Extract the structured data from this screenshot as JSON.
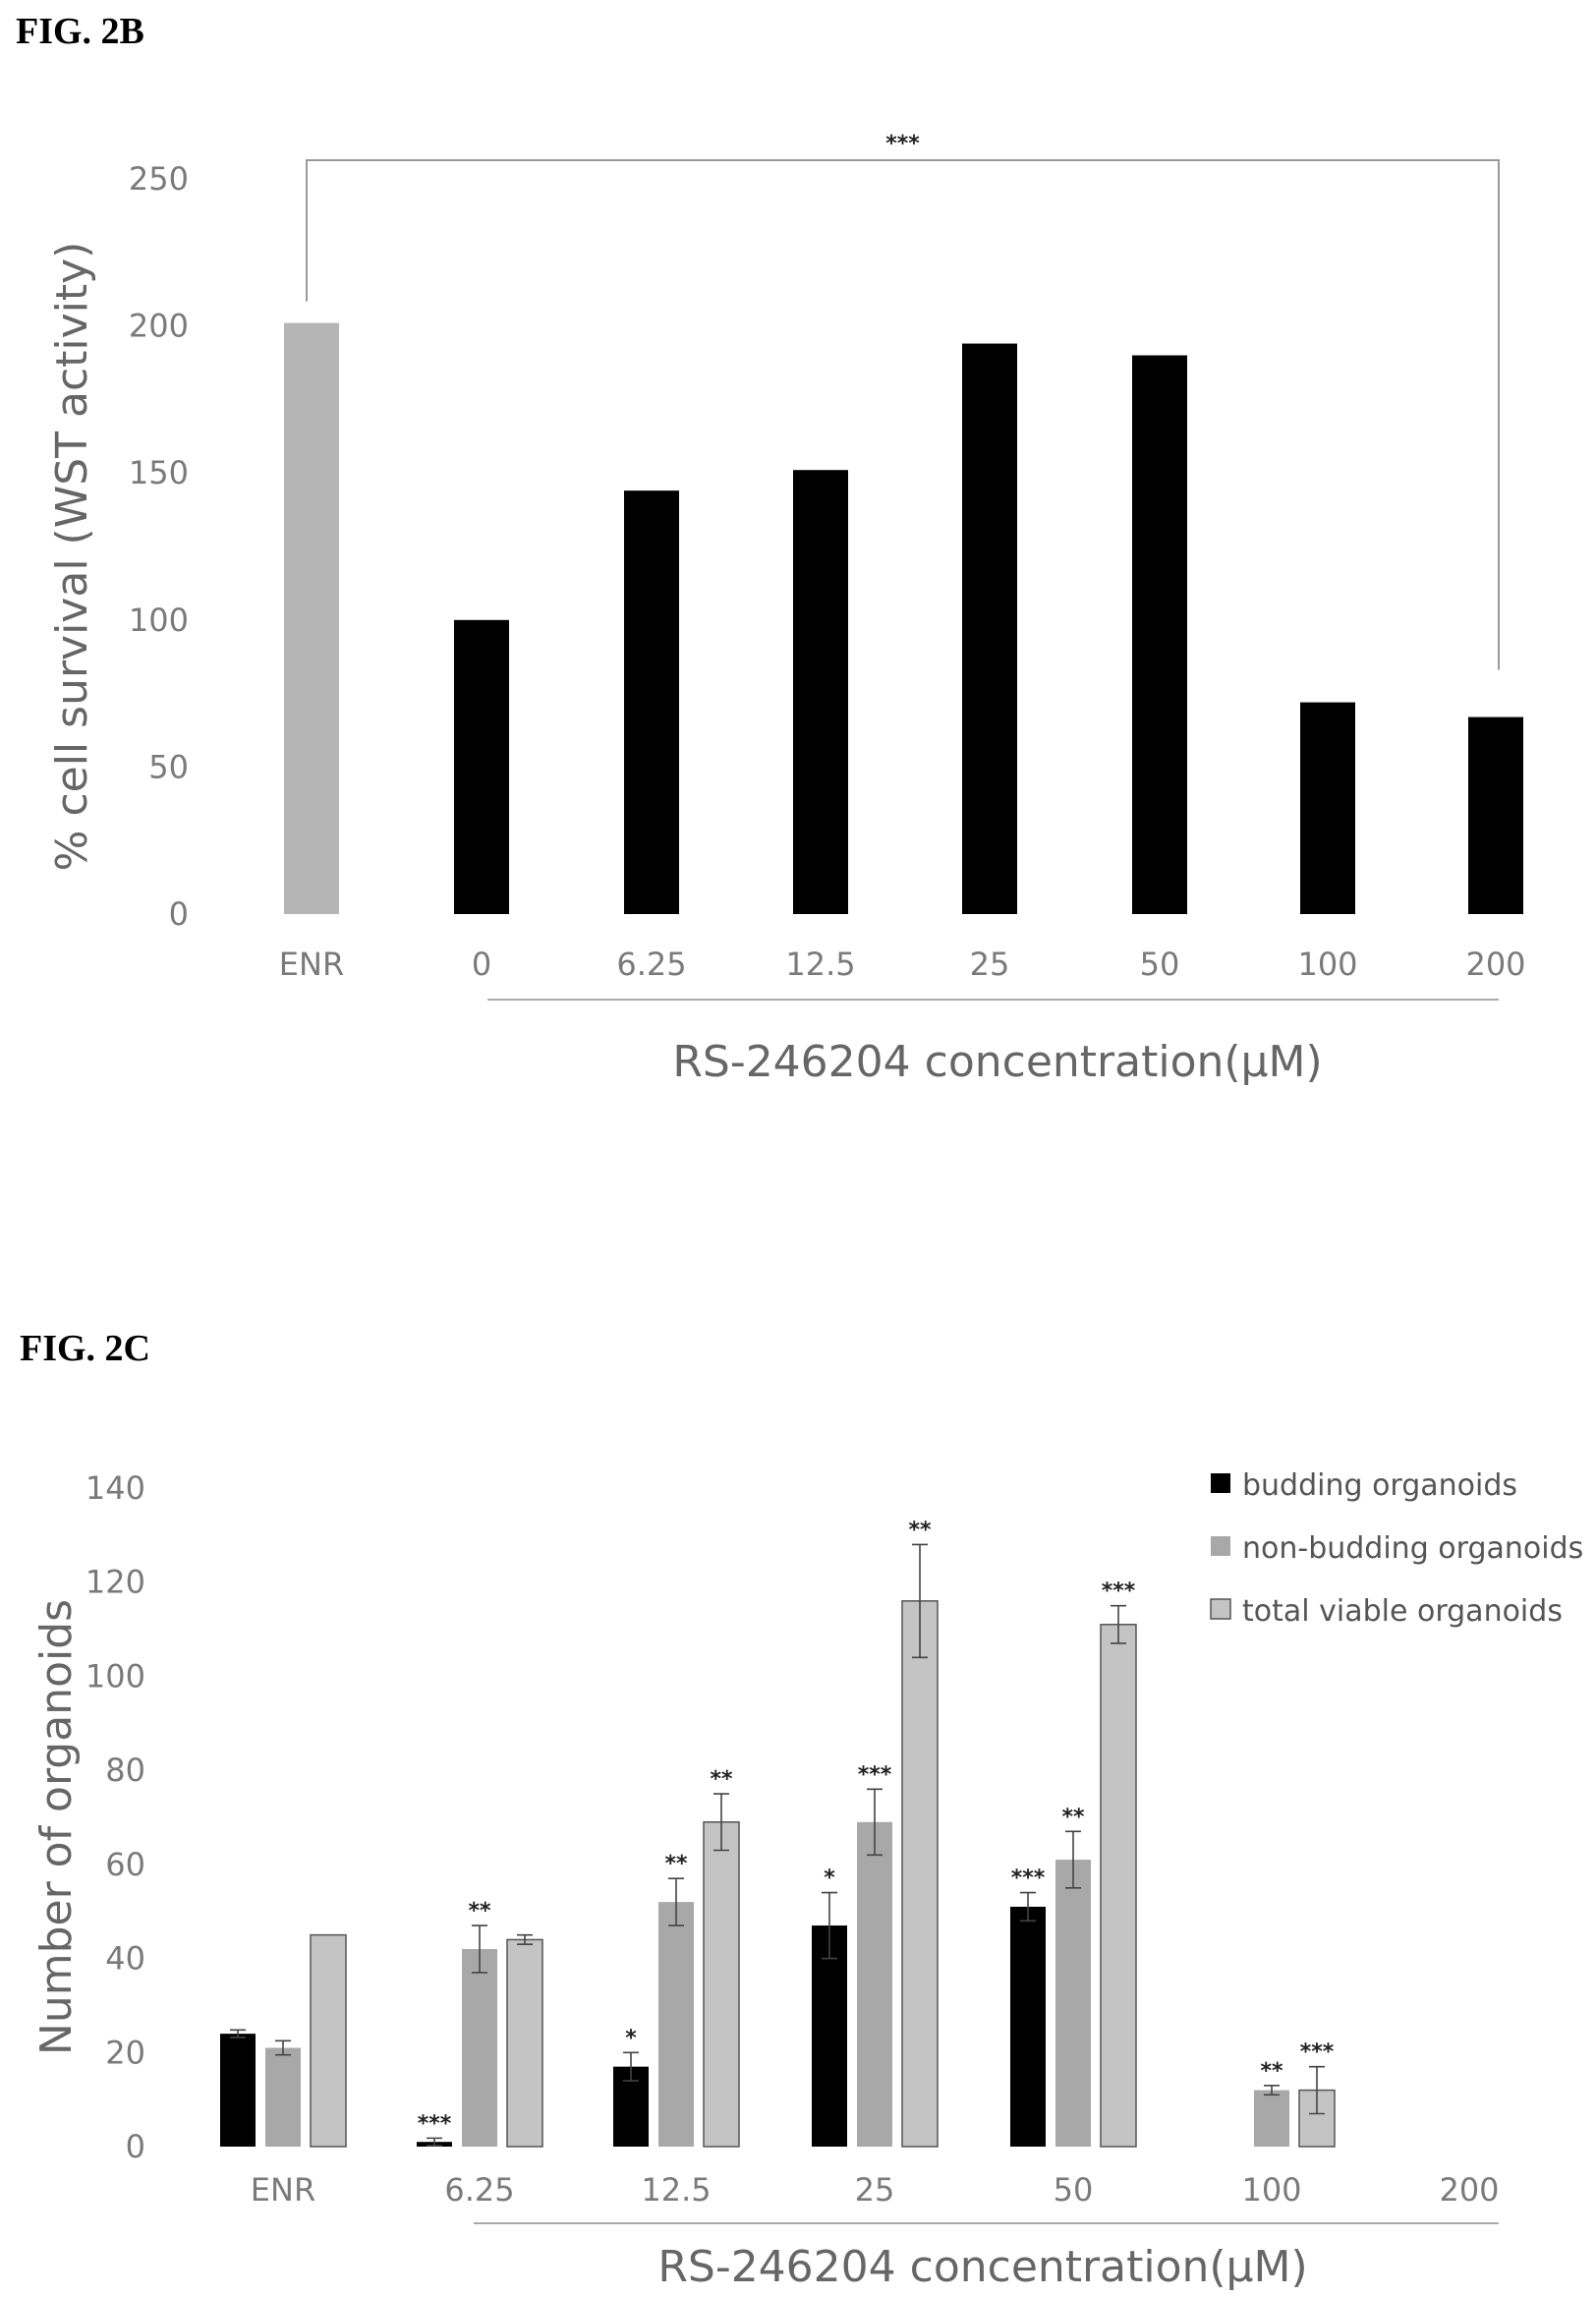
{
  "figures": [
    {
      "label": "FIG. 2B"
    },
    {
      "label": "FIG. 2C"
    }
  ],
  "chart_data": [
    {
      "type": "bar",
      "ylabel": "% cell survival (WST activity)",
      "xlabel": "RS-246204 concentration(µM)",
      "ylim": [
        0,
        250
      ],
      "yticks": [
        0,
        50,
        100,
        150,
        200,
        250
      ],
      "categories": [
        "ENR",
        "0",
        "6.25",
        "12.5",
        "25",
        "50",
        "100",
        "200"
      ],
      "values": [
        201,
        100,
        144,
        151,
        194,
        190,
        72,
        67
      ],
      "colors": [
        "#b5b5b5",
        "#000000",
        "#000000",
        "#000000",
        "#000000",
        "#000000",
        "#000000",
        "#000000"
      ],
      "bracket": {
        "from": "ENR",
        "to": "200",
        "label": "***"
      },
      "grid": false
    },
    {
      "type": "bar",
      "ylabel": "Number of organoids",
      "xlabel": "RS-246204 concentration(µM)",
      "ylim": [
        0,
        140
      ],
      "yticks": [
        0,
        20,
        40,
        60,
        80,
        100,
        120,
        140
      ],
      "categories": [
        "ENR",
        "6.25",
        "12.5",
        "25",
        "50",
        "100",
        "200"
      ],
      "legend_position": "top-right",
      "series": [
        {
          "name": "budding organoids",
          "color": "#000000",
          "values": [
            24,
            1,
            17,
            47,
            51,
            null,
            null
          ],
          "errors": [
            0.8,
            0.8,
            3,
            7,
            3,
            null,
            null
          ],
          "labels": [
            "",
            "***",
            "*",
            "*",
            "***",
            "",
            ""
          ]
        },
        {
          "name": "non-budding organoids",
          "color": "#a8a8a8",
          "values": [
            21,
            42,
            52,
            69,
            61,
            12,
            null
          ],
          "errors": [
            1.5,
            5,
            5,
            7,
            6,
            1,
            null
          ],
          "labels": [
            "",
            "**",
            "**",
            "***",
            "**",
            "**",
            ""
          ]
        },
        {
          "name": "total viable organoids",
          "color": "#c4c4c4",
          "values": [
            45,
            44,
            69,
            116,
            111,
            12,
            null
          ],
          "errors": [
            0,
            1,
            6,
            12,
            4,
            5,
            null
          ],
          "labels": [
            "",
            "",
            "**",
            "**",
            "***",
            "***",
            ""
          ]
        }
      ],
      "grid": false
    }
  ]
}
